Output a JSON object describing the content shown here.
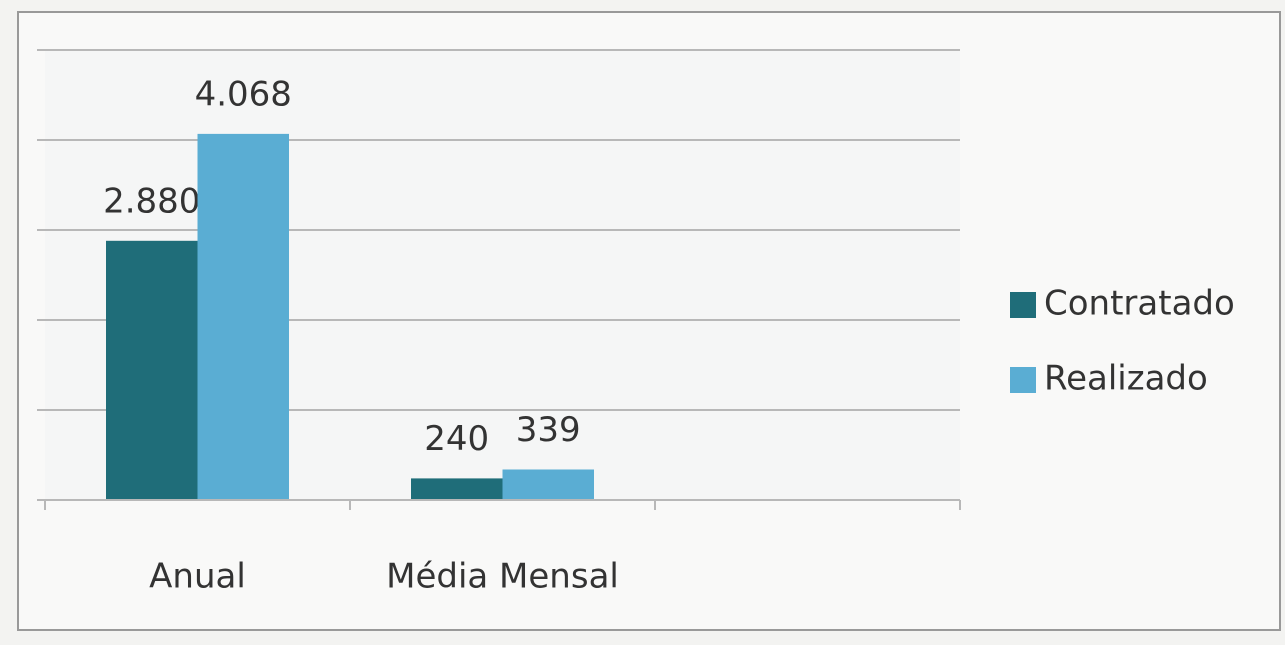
{
  "chart_data": {
    "type": "bar",
    "categories": [
      "Anual",
      "Média Mensal"
    ],
    "series": [
      {
        "name": "Contratado",
        "color": "#1f6d79",
        "values": [
          2880,
          240
        ],
        "value_labels": [
          "2.880",
          "240"
        ]
      },
      {
        "name": "Realizado",
        "color": "#5aadd3",
        "values": [
          4068,
          339
        ],
        "value_labels": [
          "4.068",
          "339"
        ]
      }
    ],
    "ylim": [
      0,
      5000
    ],
    "yticks": [
      0,
      1000,
      2000,
      3000,
      4000,
      5000
    ],
    "grid": true,
    "legend": "right"
  }
}
